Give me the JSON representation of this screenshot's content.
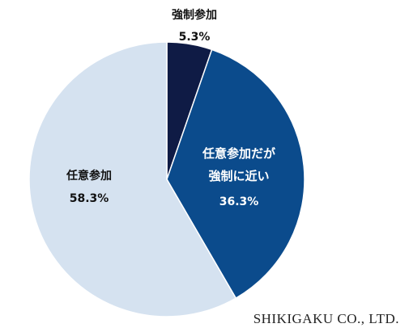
{
  "chart_data": {
    "type": "pie",
    "categories": [
      "強制参加",
      "任意参加だが\n強制に近い",
      "任意参加"
    ],
    "values": [
      5.3,
      36.3,
      58.3
    ],
    "value_labels": [
      "5.3%",
      "36.3%",
      "58.3%"
    ],
    "colors": [
      "#0f1b45",
      "#0b4b8c",
      "#d5e2f0"
    ]
  },
  "watermark": "SHIKIGAKU CO., LTD."
}
